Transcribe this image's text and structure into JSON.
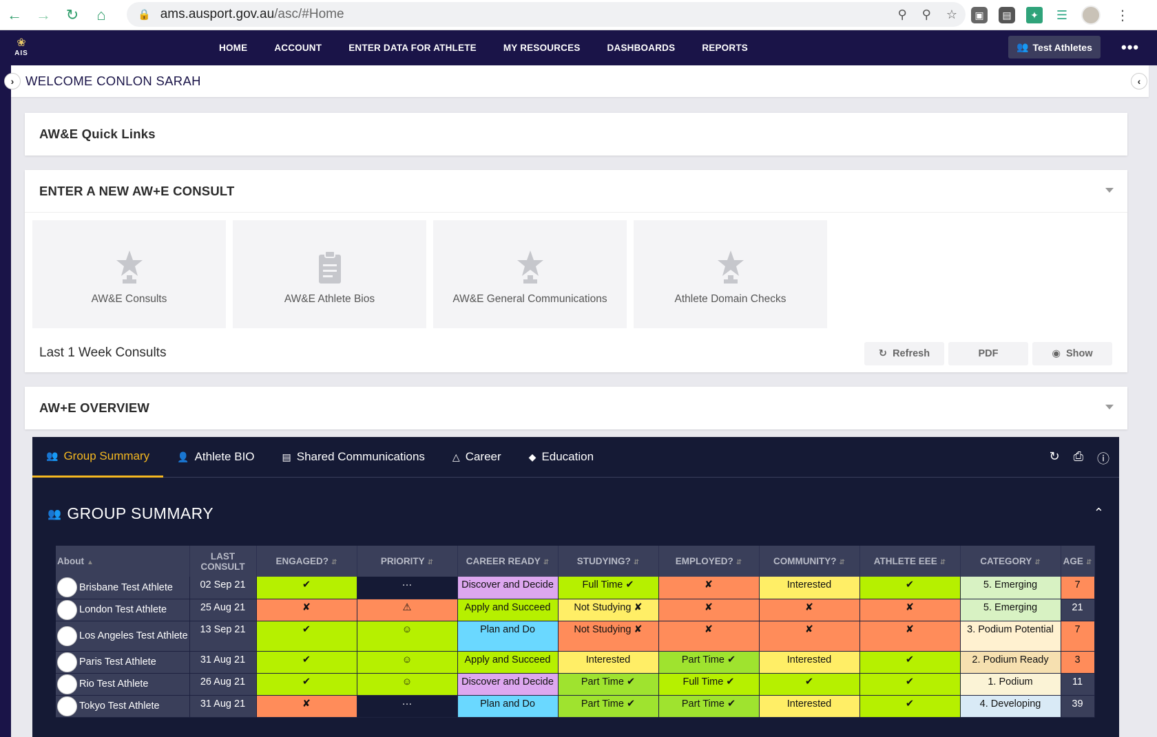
{
  "browser": {
    "url_host": "ams.ausport.gov.au",
    "url_path": "/asc/#Home"
  },
  "nav": {
    "logo_text": "AIS",
    "items": [
      "HOME",
      "ACCOUNT",
      "ENTER DATA FOR ATHLETE",
      "MY RESOURCES",
      "DASHBOARDS",
      "REPORTS"
    ],
    "group_button": "Test Athletes"
  },
  "welcome": "WELCOME CONLON SARAH",
  "quick_links": {
    "title": "AW&E Quick Links"
  },
  "consult": {
    "title": "ENTER A NEW AW+E CONSULT",
    "tiles": [
      {
        "label": "AW&E Consults",
        "icon": "award-star-icon"
      },
      {
        "label": "AW&E Athlete Bios",
        "icon": "clipboard-icon"
      },
      {
        "label": "AW&E General Communications",
        "icon": "award-star-icon"
      },
      {
        "label": "Athlete Domain Checks",
        "icon": "award-star-icon"
      }
    ],
    "last_week": "Last 1 Week Consults",
    "buttons": {
      "refresh": "Refresh",
      "pdf": "PDF",
      "show": "Show"
    }
  },
  "overview": {
    "title": "AW+E OVERVIEW",
    "tabs": [
      "Group Summary",
      "Athlete BIO",
      "Shared Communications",
      "Career",
      "Education"
    ],
    "section_title": "GROUP SUMMARY"
  },
  "table": {
    "headers": {
      "about": "About",
      "last": "LAST",
      "consult": "CONSULT",
      "engaged": "ENGAGED?",
      "priority": "PRIORITY",
      "career": "CAREER READY",
      "studying": "STUDYING?",
      "employed": "EMPLOYED?",
      "community": "COMMUNITY?",
      "eee": "ATHLETE EEE",
      "category": "CATEGORY",
      "age": "AGE"
    },
    "rows": [
      {
        "name": "Brisbane Test Athlete",
        "date": "02 Sep 21",
        "engaged": "✔",
        "priority": "···",
        "career": "Discover and Decide",
        "studying": "Full Time ✔",
        "employed": "✘",
        "community": "Interested",
        "eee": "✔",
        "category": "5. Emerging",
        "age": "7"
      },
      {
        "name": "London Test Athlete",
        "date": "25 Aug 21",
        "engaged": "✘",
        "priority": "⚠",
        "career": "Apply and Succeed",
        "studying": "Not Studying ✘",
        "employed": "✘",
        "community": "✘",
        "eee": "✘",
        "category": "5. Emerging",
        "age": "21"
      },
      {
        "name": "Los Angeles Test Athlete",
        "date": "13 Sep 21",
        "engaged": "✔",
        "priority": "☺",
        "career": "Plan and Do",
        "studying": "Not Studying ✘",
        "employed": "✘",
        "community": "✘",
        "eee": "✘",
        "category": "3. Podium Potential",
        "age": "7"
      },
      {
        "name": "Paris Test Athlete",
        "date": "31 Aug 21",
        "engaged": "✔",
        "priority": "☺",
        "career": "Apply and Succeed",
        "studying": "Interested",
        "employed": "Part Time ✔",
        "community": "Interested",
        "eee": "✔",
        "category": "2. Podium Ready",
        "age": "3"
      },
      {
        "name": "Rio Test Athlete",
        "date": "26 Aug 21",
        "engaged": "✔",
        "priority": "☺",
        "career": "Discover and Decide",
        "studying": "Part Time ✔",
        "employed": "Full Time ✔",
        "community": "✔",
        "eee": "✔",
        "category": "1. Podium",
        "age": "11"
      },
      {
        "name": "Tokyo Test Athlete",
        "date": "31 Aug 21",
        "engaged": "✘",
        "priority": "···",
        "career": "Plan and Do",
        "studying": "Part Time ✔",
        "employed": "Part Time ✔",
        "community": "Interested",
        "eee": "✔",
        "category": "4. Developing",
        "age": "39"
      }
    ]
  }
}
